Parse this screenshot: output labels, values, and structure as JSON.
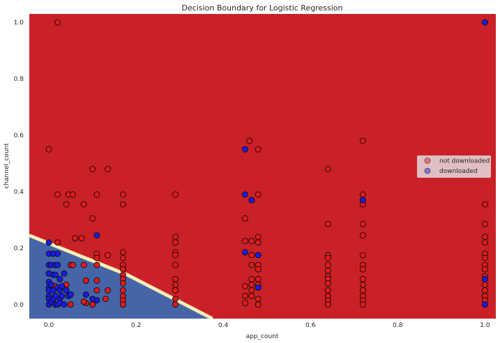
{
  "chart_data": {
    "type": "scatter",
    "title": "Decision Boundary for Logistic Regression",
    "xlabel": "app_count",
    "ylabel": "channel_count",
    "xlim": [
      -0.045,
      1.025
    ],
    "ylim": [
      -0.05,
      1.03
    ],
    "x_ticks": [
      "0.0",
      "0.2",
      "0.4",
      "0.6",
      "0.8",
      "1.0"
    ],
    "y_ticks": [
      "0.0",
      "0.2",
      "0.4",
      "0.6",
      "0.8",
      "1.0"
    ],
    "grid": false,
    "legend_position": "center-right",
    "colors": {
      "region_not_downloaded": "#c92127",
      "region_downloaded": "#4565a8",
      "not_downloaded": "#e8191c",
      "downloaded": "#1a1af0"
    },
    "boundary": {
      "description_points": [
        [
          -0.045,
          0.245
        ],
        [
          0.18,
          0.105
        ],
        [
          0.375,
          -0.05
        ]
      ]
    },
    "series": [
      {
        "name": "not downloaded",
        "points": [
          [
            0.02,
            1.0
          ],
          [
            0.0,
            0.55
          ],
          [
            0.1,
            0.48
          ],
          [
            0.135,
            0.48
          ],
          [
            0.02,
            0.39
          ],
          [
            0.045,
            0.39
          ],
          [
            0.055,
            0.39
          ],
          [
            0.11,
            0.39
          ],
          [
            0.17,
            0.39
          ],
          [
            0.29,
            0.39
          ],
          [
            0.04,
            0.355
          ],
          [
            0.08,
            0.355
          ],
          [
            0.17,
            0.355
          ],
          [
            0.1,
            0.305
          ],
          [
            0.06,
            0.235
          ],
          [
            0.075,
            0.235
          ],
          [
            0.02,
            0.22
          ],
          [
            0.11,
            0.18
          ],
          [
            0.11,
            0.165
          ],
          [
            0.135,
            0.175
          ],
          [
            0.17,
            0.185
          ],
          [
            0.17,
            0.165
          ],
          [
            0.17,
            0.14
          ],
          [
            0.17,
            0.125
          ],
          [
            0.17,
            0.105
          ],
          [
            0.17,
            0.09
          ],
          [
            0.17,
            0.075
          ],
          [
            0.17,
            0.05
          ],
          [
            0.17,
            0.03
          ],
          [
            0.17,
            0.015
          ],
          [
            0.17,
            0.0
          ],
          [
            0.11,
            0.14
          ],
          [
            0.08,
            0.14
          ],
          [
            0.05,
            0.14
          ],
          [
            0.055,
            0.14
          ],
          [
            0.11,
            0.085
          ],
          [
            0.085,
            0.085
          ],
          [
            0.135,
            0.05
          ],
          [
            0.11,
            0.05
          ],
          [
            0.13,
            0.02
          ],
          [
            0.085,
            0.005
          ],
          [
            0.08,
            0.01
          ],
          [
            0.1,
            0.0
          ],
          [
            0.05,
            0.0
          ],
          [
            0.04,
            0.07
          ],
          [
            0.015,
            0.065
          ],
          [
            0.0,
            0.11
          ],
          [
            0.29,
            0.24
          ],
          [
            0.29,
            0.22
          ],
          [
            0.29,
            0.185
          ],
          [
            0.29,
            0.175
          ],
          [
            0.29,
            0.14
          ],
          [
            0.29,
            0.09
          ],
          [
            0.29,
            0.07
          ],
          [
            0.29,
            0.05
          ],
          [
            0.29,
            0.02
          ],
          [
            0.29,
            0.0
          ],
          [
            0.46,
            0.58
          ],
          [
            0.48,
            0.55
          ],
          [
            0.48,
            0.39
          ],
          [
            0.45,
            0.305
          ],
          [
            0.45,
            0.225
          ],
          [
            0.465,
            0.225
          ],
          [
            0.48,
            0.24
          ],
          [
            0.48,
            0.22
          ],
          [
            0.465,
            0.175
          ],
          [
            0.48,
            0.14
          ],
          [
            0.465,
            0.14
          ],
          [
            0.48,
            0.125
          ],
          [
            0.465,
            0.09
          ],
          [
            0.48,
            0.09
          ],
          [
            0.465,
            0.07
          ],
          [
            0.48,
            0.07
          ],
          [
            0.45,
            0.065
          ],
          [
            0.465,
            0.05
          ],
          [
            0.465,
            0.03
          ],
          [
            0.48,
            0.02
          ],
          [
            0.45,
            0.03
          ],
          [
            0.45,
            0.005
          ],
          [
            0.48,
            0.0
          ],
          [
            0.64,
            0.48
          ],
          [
            0.64,
            0.285
          ],
          [
            0.64,
            0.175
          ],
          [
            0.64,
            0.165
          ],
          [
            0.64,
            0.14
          ],
          [
            0.64,
            0.12
          ],
          [
            0.64,
            0.1
          ],
          [
            0.64,
            0.09
          ],
          [
            0.64,
            0.075
          ],
          [
            0.64,
            0.05
          ],
          [
            0.64,
            0.03
          ],
          [
            0.64,
            0.015
          ],
          [
            0.64,
            0.0
          ],
          [
            0.72,
            0.58
          ],
          [
            0.72,
            0.39
          ],
          [
            0.72,
            0.355
          ],
          [
            0.72,
            0.285
          ],
          [
            0.72,
            0.245
          ],
          [
            0.72,
            0.175
          ],
          [
            0.72,
            0.14
          ],
          [
            0.72,
            0.125
          ],
          [
            0.72,
            0.09
          ],
          [
            0.72,
            0.07
          ],
          [
            0.72,
            0.05
          ],
          [
            0.72,
            0.03
          ],
          [
            0.72,
            0.015
          ],
          [
            0.72,
            0.0
          ],
          [
            1.0,
            0.355
          ],
          [
            1.0,
            0.285
          ],
          [
            1.0,
            0.24
          ],
          [
            1.0,
            0.22
          ],
          [
            1.0,
            0.18
          ],
          [
            1.0,
            0.165
          ],
          [
            1.0,
            0.14
          ],
          [
            1.0,
            0.125
          ],
          [
            1.0,
            0.1
          ],
          [
            1.0,
            0.09
          ],
          [
            1.0,
            0.07
          ],
          [
            1.0,
            0.05
          ],
          [
            1.0,
            0.03
          ],
          [
            1.0,
            0.015
          ]
        ]
      },
      {
        "name": "downloaded",
        "points": [
          [
            1.0,
            1.0
          ],
          [
            0.45,
            0.55
          ],
          [
            0.45,
            0.39
          ],
          [
            0.465,
            0.37
          ],
          [
            0.72,
            0.37
          ],
          [
            0.11,
            0.245
          ],
          [
            0.45,
            0.185
          ],
          [
            0.48,
            0.175
          ],
          [
            0.48,
            0.06
          ],
          [
            1.0,
            0.09
          ],
          [
            1.0,
            0.0
          ],
          [
            0.0,
            0.22
          ],
          [
            0.0,
            0.18
          ],
          [
            0.0,
            0.14
          ],
          [
            0.0,
            0.11
          ],
          [
            0.0,
            0.08
          ],
          [
            0.0,
            0.06
          ],
          [
            0.0,
            0.05
          ],
          [
            0.0,
            0.03
          ],
          [
            0.0,
            0.02
          ],
          [
            0.0,
            0.0
          ],
          [
            0.005,
            0.14
          ],
          [
            0.005,
            0.07
          ],
          [
            0.005,
            0.01
          ],
          [
            0.01,
            0.18
          ],
          [
            0.01,
            0.105
          ],
          [
            0.01,
            0.05
          ],
          [
            0.01,
            0.02
          ],
          [
            0.015,
            0.14
          ],
          [
            0.015,
            0.105
          ],
          [
            0.015,
            0.03
          ],
          [
            0.015,
            0.0
          ],
          [
            0.02,
            0.18
          ],
          [
            0.02,
            0.14
          ],
          [
            0.02,
            0.06
          ],
          [
            0.02,
            0.0
          ],
          [
            0.025,
            0.09
          ],
          [
            0.025,
            0.05
          ],
          [
            0.025,
            0.02
          ],
          [
            0.025,
            0.005
          ],
          [
            0.03,
            0.065
          ],
          [
            0.03,
            0.03
          ],
          [
            0.035,
            0.11
          ],
          [
            0.035,
            0.0
          ],
          [
            0.04,
            0.05
          ],
          [
            0.045,
            0.03
          ],
          [
            0.05,
            0.035
          ],
          [
            0.1,
            0.02
          ],
          [
            0.11,
            0.015
          ],
          [
            0.085,
            0.035
          ]
        ]
      }
    ]
  }
}
